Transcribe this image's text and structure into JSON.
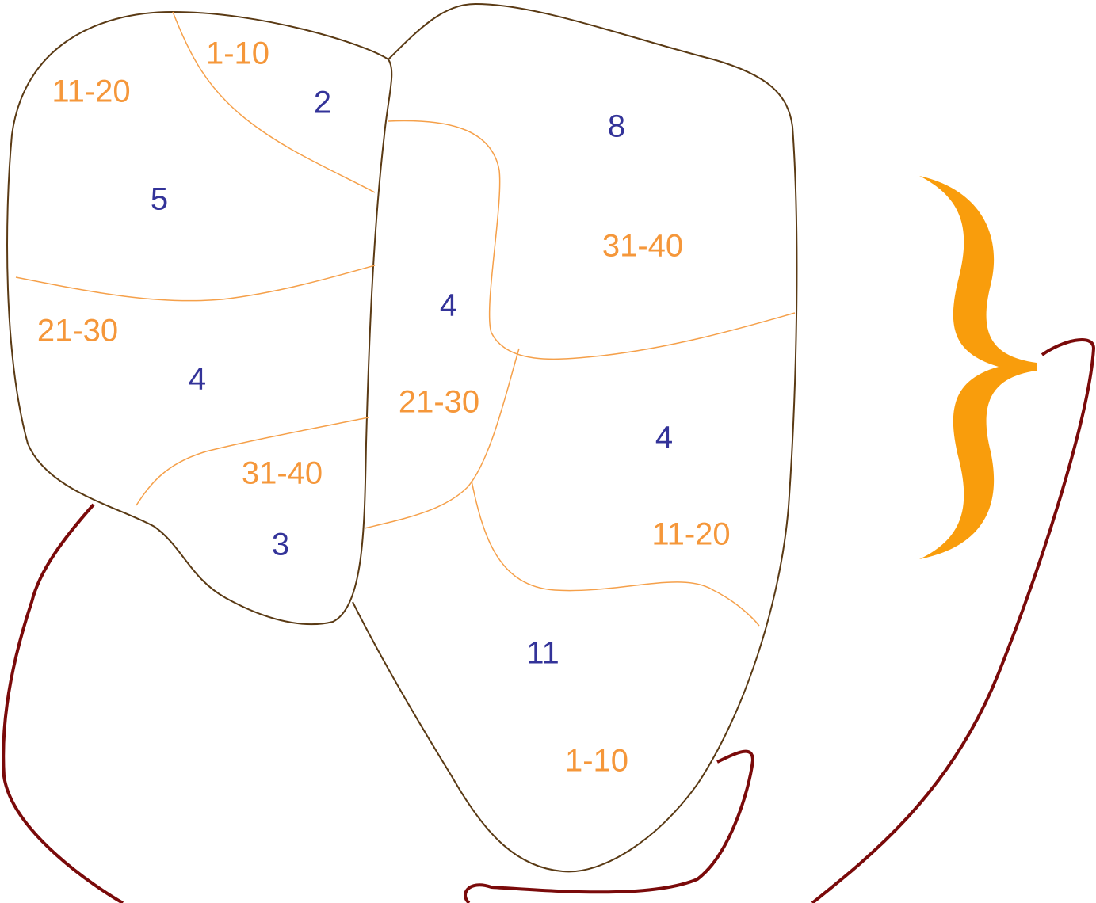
{
  "left_shape": {
    "regions": [
      {
        "range": "1-10",
        "count": "2"
      },
      {
        "range": "11-20",
        "count": "5"
      },
      {
        "range": "21-30",
        "count": "4"
      },
      {
        "range": "31-40",
        "count": "3"
      }
    ]
  },
  "right_shape": {
    "regions": [
      {
        "range": "31-40",
        "count": "8"
      },
      {
        "range": "21-30",
        "count": "4"
      },
      {
        "range": "11-20",
        "count": "4"
      },
      {
        "range": "1-10",
        "count": "11"
      }
    ]
  }
}
